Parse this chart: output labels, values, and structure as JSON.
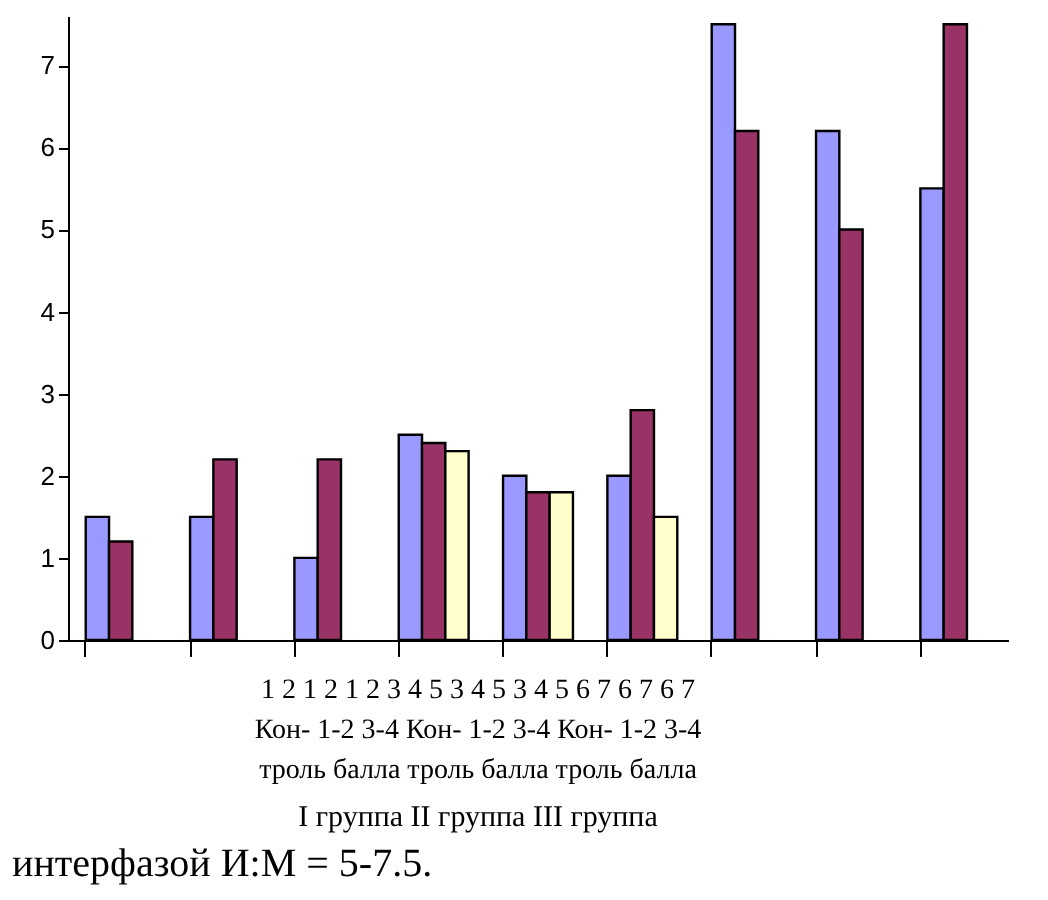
{
  "chart_data": {
    "type": "bar",
    "categories": [
      null,
      null,
      null,
      null,
      null,
      null,
      null,
      null,
      null
    ],
    "series": [
      {
        "color": "#9999ff",
        "values": [
          1.5,
          1.5,
          1.0,
          2.5,
          2.0,
          2.0,
          7.5,
          6.2,
          5.5
        ]
      },
      {
        "color": "#993366",
        "values": [
          1.2,
          2.2,
          2.2,
          2.4,
          1.8,
          2.8,
          6.2,
          5.0,
          7.5
        ]
      },
      {
        "color": "#ffffcc",
        "values": [
          null,
          null,
          null,
          2.3,
          1.8,
          1.5,
          null,
          null,
          null
        ]
      }
    ],
    "ylim": [
      0,
      7.6
    ],
    "yticks": [
      0,
      1,
      2,
      3,
      4,
      5,
      6,
      7
    ],
    "grid": false,
    "tick_labels": "y",
    "annotations": [
      "1 2 1 2 1 2 3 4 5 3 4 5 3 4 5 6 7 6 7 6 7",
      "Кон- 1-2 3-4 Кон- 1-2 3-4 Кон- 1-2 3-4",
      "троль балла троль балла троль балла",
      "I группа II группа III группа",
      "интерфазой И:М = 5-7.5."
    ]
  }
}
